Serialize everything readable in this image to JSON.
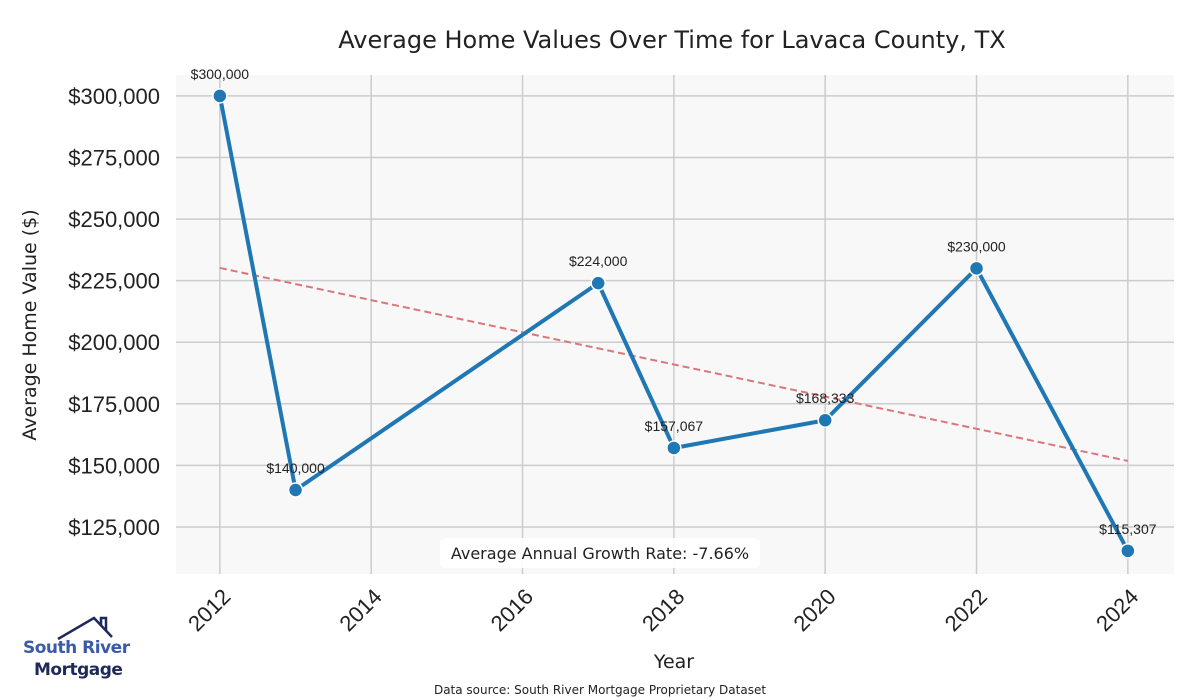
{
  "chart_data": {
    "type": "line",
    "title": "Average Home Values Over Time for Lavaca County, TX",
    "xlabel": "Year",
    "ylabel": "Average Home Value ($)",
    "x": [
      2012,
      2013,
      2017,
      2018,
      2020,
      2022,
      2024
    ],
    "values": [
      300000,
      140000,
      224000,
      157067,
      168333,
      230000,
      115307
    ],
    "data_labels": [
      "$300,000",
      "$140,000",
      "$224,000",
      "$157,067",
      "$168,333",
      "$230,000",
      "$115,307"
    ],
    "xticks": [
      2012,
      2014,
      2016,
      2018,
      2020,
      2022,
      2024
    ],
    "yticks": [
      125000,
      150000,
      175000,
      200000,
      225000,
      250000,
      275000,
      300000
    ],
    "ytick_labels": [
      "$125,000",
      "$150,000",
      "$175,000",
      "$200,000",
      "$225,000",
      "$250,000",
      "$275,000",
      "$300,000"
    ],
    "xlim": [
      2011.42,
      2024.61
    ],
    "ylim": [
      105900,
      308500
    ],
    "trend": {
      "x": [
        2012,
        2024
      ],
      "values": [
        230160,
        151800
      ],
      "color": "#d9777a"
    },
    "annotation": "Average Annual Growth Rate: -7.66%",
    "grid": true,
    "line_color": "#1f77b4"
  },
  "source": "Data source: South River Mortgage Proprietary Dataset",
  "logo": {
    "line1": "South River",
    "line2": "Mortgage"
  }
}
